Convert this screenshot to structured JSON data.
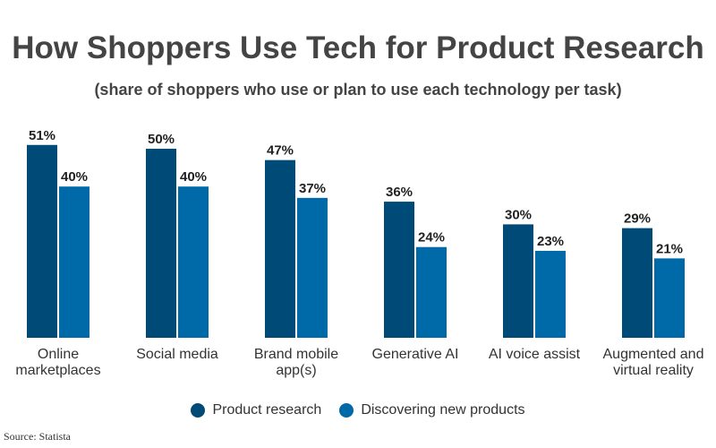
{
  "chart_data": {
    "type": "bar",
    "title": "How Shoppers Use Tech for Product Research",
    "subtitle": "(share of shoppers who use or plan to use each technology per task)",
    "categories": [
      [
        "Online",
        "marketplaces"
      ],
      [
        "Social media"
      ],
      [
        "Brand mobile",
        "app(s)"
      ],
      [
        "Generative AI"
      ],
      [
        "AI voice assist"
      ],
      [
        "Augmented and",
        "virtual reality"
      ]
    ],
    "series": [
      {
        "name": "Product research",
        "color": "#004a77",
        "values": [
          51,
          50,
          47,
          36,
          30,
          29
        ]
      },
      {
        "name": "Discovering new products",
        "color": "#0069a8",
        "values": [
          40,
          40,
          37,
          24,
          23,
          21
        ]
      }
    ],
    "value_suffix": "%",
    "ylim": [
      0,
      55
    ],
    "grid": false,
    "legend": "bottom"
  },
  "source": "Source: Statista"
}
